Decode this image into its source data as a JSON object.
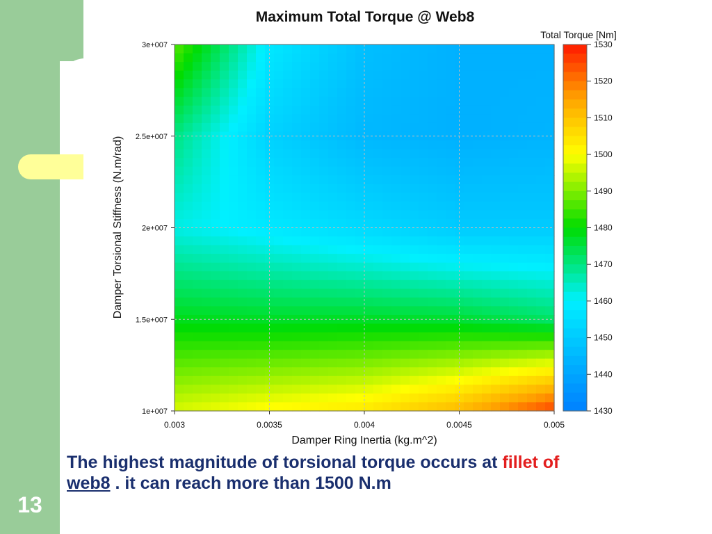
{
  "slide": {
    "number": "13",
    "caption": {
      "part1": "The highest magnitude of torsional torque occurs at ",
      "highlight": "fillet of",
      "underlined": "web8",
      "part2": " . it can reach more than 1500 N.m"
    },
    "colors": {
      "sidebar": "#99cc99",
      "tab": "#ffff99",
      "caption_text": "#1a2f6e",
      "highlight": "#e31e1e"
    }
  },
  "chart_data": {
    "type": "heatmap",
    "title": "Maximum Total Torque @ Web8",
    "xlabel": "Damper Ring Inertia (kg.m^2)",
    "ylabel": "Damper Torsional Stiffness (N.m/rad)",
    "colorbar_label": "Total Torque [Nm]",
    "x": [
      0.003,
      0.0035,
      0.004,
      0.0045,
      0.005
    ],
    "y": [
      30000000,
      25000000,
      20000000,
      15000000,
      10000000
    ],
    "values": [
      [
        1487,
        1458,
        1447,
        1443,
        1443
      ],
      [
        1470,
        1452,
        1445,
        1443,
        1444
      ],
      [
        1462,
        1458,
        1454,
        1450,
        1450
      ],
      [
        1478,
        1477,
        1477,
        1476,
        1472
      ],
      [
        1497,
        1501,
        1504,
        1512,
        1526
      ]
    ],
    "x_ticks": [
      "0.003",
      "0.0035",
      "0.004",
      "0.0045",
      "0.005"
    ],
    "y_ticks": [
      "3e+007",
      "2.5e+007",
      "2e+007",
      "1.5e+007",
      "1e+007"
    ],
    "xlim": [
      0.003,
      0.005
    ],
    "ylim": [
      10000000,
      30000000
    ],
    "colorbar_ticks": [
      "1430",
      "1440",
      "1450",
      "1460",
      "1470",
      "1480",
      "1490",
      "1500",
      "1510",
      "1520",
      "1530"
    ],
    "clim": [
      1430,
      1530
    ],
    "colormap": "jet",
    "grid": true,
    "legend": "colorbar right"
  }
}
